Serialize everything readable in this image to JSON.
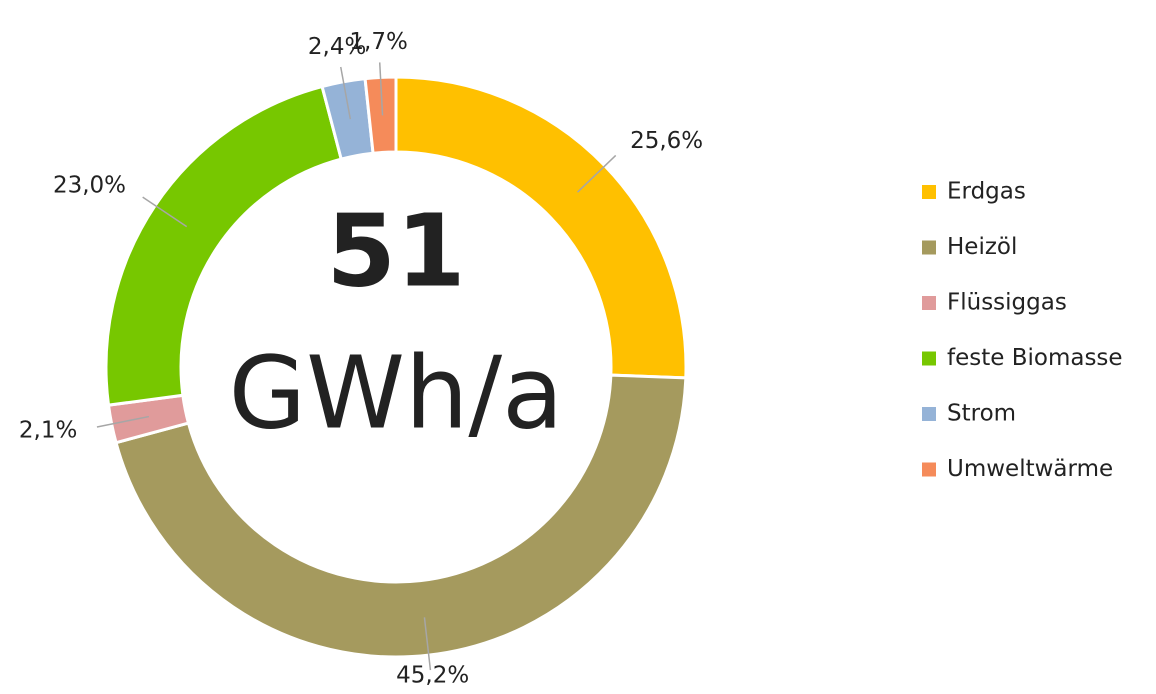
{
  "chart_data": {
    "type": "donut",
    "categories": [
      "Erdgas",
      "Heizöl",
      "Flüssiggas",
      "feste Biomasse",
      "Strom",
      "Umweltwärme"
    ],
    "values": [
      25.6,
      45.2,
      2.1,
      23.0,
      2.4,
      1.7
    ],
    "value_labels": [
      "25,6%",
      "45,2%",
      "2,1%",
      "23,0%",
      "2,4%",
      "1,7%"
    ],
    "colors": [
      "#FFC000",
      "#A59A5E",
      "#E09B9B",
      "#77C700",
      "#95B3D7",
      "#F58B5A"
    ],
    "center_text": [
      "51",
      "GWh/a"
    ],
    "legend": "right"
  }
}
